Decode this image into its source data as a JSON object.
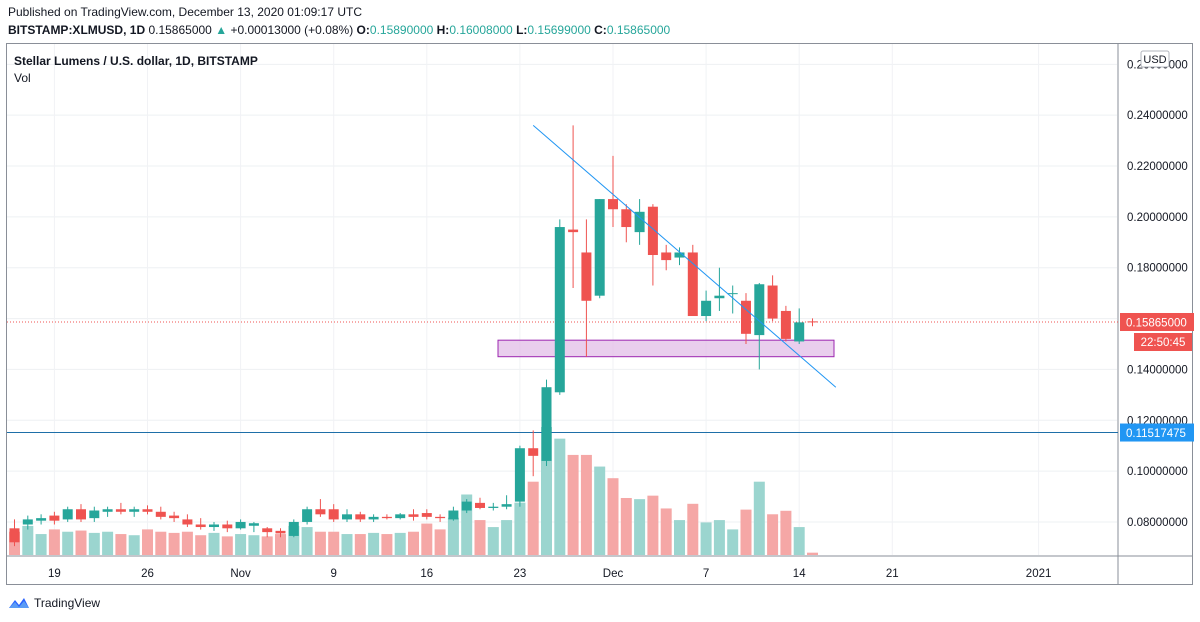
{
  "header": {
    "published": "Published on TradingView.com, December 13, 2020 01:09:17 UTC",
    "symbol": "BITSTAMP:XLMUSD, 1D",
    "last": "0.15865000",
    "change": "+0.00013000 (+0.08%)",
    "o_label": "O:",
    "o_value": "0.15890000",
    "h_label": "H:",
    "h_value": "0.16008000",
    "l_label": "L:",
    "l_value": "0.15699000",
    "c_label": "C:",
    "c_value": "0.15865000"
  },
  "legend": {
    "title": "Stellar Lumens / U.S. dollar, 1D, BITSTAMP",
    "volume": "Vol"
  },
  "footer": {
    "brand": "TradingView"
  },
  "colors": {
    "up": "#26a69a",
    "down": "#ef5350",
    "vol_up": "#9bd5cf",
    "vol_down": "#f5a7a6",
    "trendline": "#2196f3",
    "support_line": "#1e6fa8",
    "zone_fill": "#e1bee7",
    "zone_border": "#9c27b0",
    "last_line": "#ef5350",
    "hline_label": "#2196f3"
  },
  "chart_data": {
    "type": "candlestick",
    "currency_label": "USD",
    "y_range": [
      0.067,
      0.268
    ],
    "y_ticks": [
      "0.26000000",
      "0.24000000",
      "0.22000000",
      "0.20000000",
      "0.18000000",
      "0.16000000",
      "0.14000000",
      "0.12000000",
      "0.10000000",
      "0.08000000"
    ],
    "x_labels": [
      "19",
      "26",
      "Nov",
      "9",
      "16",
      "23",
      "Dec",
      "7",
      "14",
      "21",
      "2021"
    ],
    "last_price_label": "0.15865000",
    "countdown_label": "22:50:45",
    "horizontal_line": {
      "value": 0.11517475,
      "label": "0.11517475"
    },
    "support_zone": {
      "low": 0.145,
      "high": 0.1515
    },
    "trendline": {
      "from": [
        "2020-11-24",
        0.236
      ],
      "to": [
        "2020-12-16",
        0.133
      ]
    },
    "candles": [
      [
        "2020-10-16",
        0.0775,
        0.081,
        0.0705,
        0.072
      ],
      [
        "2020-10-17",
        0.079,
        0.0825,
        0.077,
        0.081
      ],
      [
        "2020-10-18",
        0.0805,
        0.083,
        0.079,
        0.0815
      ],
      [
        "2020-10-19",
        0.0825,
        0.084,
        0.079,
        0.0805
      ],
      [
        "2020-10-20",
        0.081,
        0.086,
        0.08,
        0.085
      ],
      [
        "2020-10-21",
        0.085,
        0.087,
        0.08,
        0.081
      ],
      [
        "2020-10-22",
        0.0815,
        0.086,
        0.08,
        0.0845
      ],
      [
        "2020-10-23",
        0.084,
        0.086,
        0.082,
        0.085
      ],
      [
        "2020-10-24",
        0.085,
        0.0875,
        0.083,
        0.084
      ],
      [
        "2020-10-25",
        0.084,
        0.086,
        0.082,
        0.085
      ],
      [
        "2020-10-26",
        0.085,
        0.0865,
        0.083,
        0.084
      ],
      [
        "2020-10-27",
        0.084,
        0.086,
        0.081,
        0.082
      ],
      [
        "2020-10-28",
        0.0825,
        0.084,
        0.08,
        0.0815
      ],
      [
        "2020-10-29",
        0.081,
        0.083,
        0.078,
        0.079
      ],
      [
        "2020-10-30",
        0.079,
        0.0815,
        0.077,
        0.078
      ],
      [
        "2020-10-31",
        0.078,
        0.08,
        0.0765,
        0.079
      ],
      [
        "2020-11-01",
        0.079,
        0.0805,
        0.076,
        0.0775
      ],
      [
        "2020-11-02",
        0.0775,
        0.081,
        0.077,
        0.08
      ],
      [
        "2020-11-03",
        0.0785,
        0.08,
        0.076,
        0.0795
      ],
      [
        "2020-11-04",
        0.0775,
        0.078,
        0.074,
        0.076
      ],
      [
        "2020-11-05",
        0.0765,
        0.0775,
        0.074,
        0.0755
      ],
      [
        "2020-11-06",
        0.0745,
        0.081,
        0.074,
        0.08
      ],
      [
        "2020-11-07",
        0.08,
        0.086,
        0.079,
        0.085
      ],
      [
        "2020-11-08",
        0.085,
        0.089,
        0.082,
        0.083
      ],
      [
        "2020-11-09",
        0.085,
        0.087,
        0.08,
        0.081
      ],
      [
        "2020-11-10",
        0.081,
        0.085,
        0.08,
        0.083
      ],
      [
        "2020-11-11",
        0.083,
        0.084,
        0.08,
        0.081
      ],
      [
        "2020-11-12",
        0.081,
        0.083,
        0.08,
        0.082
      ],
      [
        "2020-11-13",
        0.082,
        0.083,
        0.081,
        0.0815
      ],
      [
        "2020-11-14",
        0.0815,
        0.0835,
        0.081,
        0.083
      ],
      [
        "2020-11-15",
        0.083,
        0.085,
        0.0805,
        0.082
      ],
      [
        "2020-11-16",
        0.0835,
        0.085,
        0.081,
        0.082
      ],
      [
        "2020-11-17",
        0.082,
        0.083,
        0.08,
        0.0815
      ],
      [
        "2020-11-18",
        0.081,
        0.086,
        0.0805,
        0.0845
      ],
      [
        "2020-11-19",
        0.0845,
        0.089,
        0.0835,
        0.088
      ],
      [
        "2020-11-20",
        0.0875,
        0.0895,
        0.085,
        0.0855
      ],
      [
        "2020-11-21",
        0.0855,
        0.0875,
        0.0845,
        0.086
      ],
      [
        "2020-11-22",
        0.086,
        0.0905,
        0.085,
        0.087
      ],
      [
        "2020-11-23",
        0.088,
        0.11,
        0.086,
        0.109
      ],
      [
        "2020-11-24",
        0.109,
        0.116,
        0.098,
        0.106
      ],
      [
        "2020-11-25",
        0.104,
        0.136,
        0.102,
        0.133
      ],
      [
        "2020-11-26",
        0.131,
        0.199,
        0.13,
        0.196
      ],
      [
        "2020-11-27",
        0.195,
        0.236,
        0.172,
        0.194
      ],
      [
        "2020-11-28",
        0.186,
        0.199,
        0.145,
        0.167
      ],
      [
        "2020-11-29",
        0.169,
        0.207,
        0.168,
        0.207
      ],
      [
        "2020-11-30",
        0.207,
        0.224,
        0.196,
        0.203
      ],
      [
        "2020-12-01",
        0.203,
        0.205,
        0.19,
        0.196
      ],
      [
        "2020-12-02",
        0.194,
        0.207,
        0.189,
        0.202
      ],
      [
        "2020-12-03",
        0.204,
        0.205,
        0.173,
        0.185
      ],
      [
        "2020-12-04",
        0.186,
        0.189,
        0.179,
        0.183
      ],
      [
        "2020-12-05",
        0.184,
        0.188,
        0.181,
        0.186
      ],
      [
        "2020-12-06",
        0.186,
        0.189,
        0.162,
        0.161
      ],
      [
        "2020-12-07",
        0.161,
        0.171,
        0.159,
        0.167
      ],
      [
        "2020-12-08",
        0.168,
        0.18,
        0.163,
        0.169
      ],
      [
        "2020-12-09",
        0.17,
        0.173,
        0.162,
        0.17
      ],
      [
        "2020-12-10",
        0.167,
        0.17,
        0.15,
        0.154
      ],
      [
        "2020-12-11",
        0.1535,
        0.174,
        0.14,
        0.1735
      ],
      [
        "2020-12-12",
        0.173,
        0.177,
        0.159,
        0.16
      ],
      [
        "2020-12-13",
        0.163,
        0.165,
        0.151,
        0.152
      ],
      [
        "2020-12-14",
        0.151,
        0.164,
        0.15,
        0.1585
      ],
      [
        "2020-12-15",
        0.1589,
        0.1601,
        0.157,
        0.1587
      ]
    ],
    "volumes": [
      0.2,
      0.25,
      0.18,
      0.22,
      0.2,
      0.21,
      0.19,
      0.2,
      0.18,
      0.17,
      0.22,
      0.2,
      0.19,
      0.2,
      0.17,
      0.19,
      0.16,
      0.18,
      0.17,
      0.16,
      0.18,
      0.25,
      0.24,
      0.2,
      0.2,
      0.18,
      0.18,
      0.19,
      0.18,
      0.19,
      0.2,
      0.27,
      0.22,
      0.32,
      0.52,
      0.3,
      0.24,
      0.3,
      0.45,
      0.63,
      1.1,
      1.0,
      0.86,
      0.86,
      0.76,
      0.66,
      0.49,
      0.48,
      0.51,
      0.4,
      0.3,
      0.44,
      0.28,
      0.3,
      0.22,
      0.39,
      0.63,
      0.35,
      0.38,
      0.24,
      0.02
    ]
  }
}
